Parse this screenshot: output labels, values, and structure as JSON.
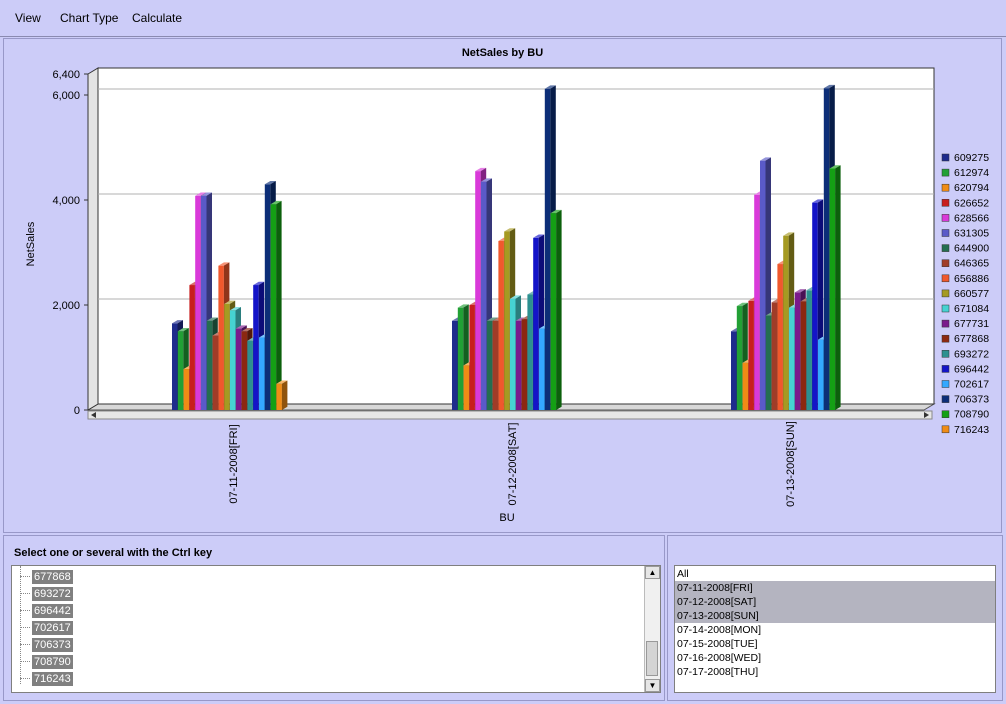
{
  "menu": [
    "View",
    "Chart Type",
    "Calculate"
  ],
  "chart_data": {
    "type": "bar",
    "title": "NetSales  by BU",
    "xlabel": "BU",
    "ylabel": "NetSales",
    "ylim": [
      0,
      6400
    ],
    "yticks": [
      "0",
      "2,000",
      "4,000",
      "6,000",
      "6,400"
    ],
    "categories": [
      "07-11-2008[FRI]",
      "07-12-2008[SAT]",
      "07-13-2008[SUN]"
    ],
    "legend_position": "right",
    "series": [
      {
        "name": "609275",
        "color": "#1e2b8c",
        "values": [
          1650,
          1700,
          1500
        ]
      },
      {
        "name": "612974",
        "color": "#22a035",
        "values": [
          1500,
          1950,
          1980
        ]
      },
      {
        "name": "620794",
        "color": "#f08c16",
        "values": [
          780,
          850,
          900
        ]
      },
      {
        "name": "626652",
        "color": "#c81e1e",
        "values": [
          2380,
          2000,
          2080
        ]
      },
      {
        "name": "628566",
        "color": "#d93ad9",
        "values": [
          4080,
          4550,
          4100
        ]
      },
      {
        "name": "631305",
        "color": "#5a5ac8",
        "values": [
          4080,
          4350,
          4750
        ]
      },
      {
        "name": "644900",
        "color": "#246e50",
        "values": [
          1700,
          1700,
          1800
        ]
      },
      {
        "name": "646365",
        "color": "#a03c28",
        "values": [
          1420,
          1700,
          2050
        ]
      },
      {
        "name": "656886",
        "color": "#f0582c",
        "values": [
          2750,
          3220,
          2780
        ]
      },
      {
        "name": "660577",
        "color": "#a59a22",
        "values": [
          2020,
          3400,
          3320
        ]
      },
      {
        "name": "671084",
        "color": "#46d2d2",
        "values": [
          1900,
          2120,
          1950
        ]
      },
      {
        "name": "677731",
        "color": "#7a1a8c",
        "values": [
          1550,
          1700,
          2240
        ]
      },
      {
        "name": "677868",
        "color": "#8c2810",
        "values": [
          1500,
          1730,
          2070
        ]
      },
      {
        "name": "693272",
        "color": "#2c9090",
        "values": [
          1320,
          2200,
          2280
        ]
      },
      {
        "name": "696442",
        "color": "#1414c8",
        "values": [
          2380,
          3280,
          3950
        ]
      },
      {
        "name": "702617",
        "color": "#34a8ff",
        "values": [
          1380,
          1550,
          1340
        ]
      },
      {
        "name": "706373",
        "color": "#0c2e78",
        "values": [
          4300,
          6120,
          6130
        ]
      },
      {
        "name": "708790",
        "color": "#14a014",
        "values": [
          3920,
          3750,
          4600
        ]
      },
      {
        "name": "716243",
        "color": "#f08c16",
        "values": [
          500,
          0,
          0
        ]
      }
    ]
  },
  "selector": {
    "label": "Select one or several with the Ctrl key",
    "items": [
      "677868",
      "693272",
      "696442",
      "702617",
      "706373",
      "708790",
      "716243"
    ]
  },
  "dates": {
    "items": [
      "All",
      "07-11-2008[FRI]",
      "07-12-2008[SAT]",
      "07-13-2008[SUN]",
      "07-14-2008[MON]",
      "07-15-2008[TUE]",
      "07-16-2008[WED]",
      "07-17-2008[THU]"
    ],
    "selected": [
      "07-11-2008[FRI]",
      "07-12-2008[SAT]",
      "07-13-2008[SUN]"
    ]
  }
}
